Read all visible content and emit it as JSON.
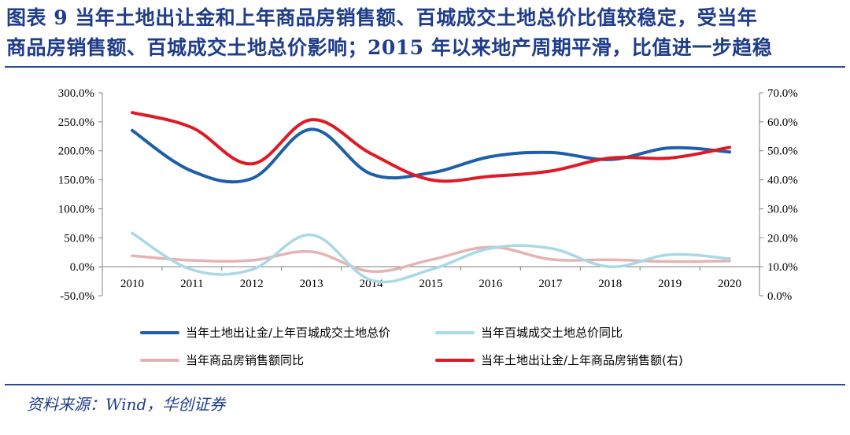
{
  "title_line1": "图表 9  当年土地出让金和上年商品房销售额、百城成交土地总价比值较稳定，受当年",
  "title_line2": "商品房销售额、百城成交土地总价影响；2015 年以来地产周期平滑，比值进一步趋稳",
  "source": "资料来源：Wind，华创证券",
  "chart_data": {
    "type": "line",
    "categories": [
      "2010",
      "2011",
      "2012",
      "2013",
      "2014",
      "2015",
      "2016",
      "2017",
      "2018",
      "2019",
      "2020"
    ],
    "left_axis": {
      "ylim": [
        -50,
        300
      ],
      "ticks": [
        "300.0%",
        "250.0%",
        "200.0%",
        "150.0%",
        "100.0%",
        "50.0%",
        "0.0%",
        "-50.0%"
      ]
    },
    "right_axis": {
      "ylim": [
        0,
        70
      ],
      "ticks": [
        "70.0%",
        "60.0%",
        "50.0%",
        "40.0%",
        "30.0%",
        "20.0%",
        "10.0%",
        "0.0%"
      ]
    },
    "series": [
      {
        "name": "当年土地出让金/上年百城成交土地总价",
        "axis": "left",
        "color": "#1f5fa8",
        "values": [
          235,
          165,
          152,
          237,
          160,
          162,
          190,
          197,
          185,
          205,
          198
        ]
      },
      {
        "name": "当年百城成交土地总价同比",
        "axis": "left",
        "color": "#a9d8e6",
        "values": [
          58,
          -5,
          -5,
          55,
          -23,
          -5,
          32,
          32,
          0,
          21,
          14
        ]
      },
      {
        "name": "当年商品房销售额同比",
        "axis": "left",
        "color": "#e6b3b3",
        "values": [
          19,
          11,
          11,
          26,
          -8,
          12,
          34,
          13,
          12,
          9,
          10
        ]
      },
      {
        "name": "当年土地出让金/上年商品房销售额(右)",
        "axis": "right",
        "color": "#e01a25",
        "values": [
          63.2,
          58,
          45.5,
          60.7,
          49,
          40,
          41.2,
          43,
          47.5,
          47.5,
          51.2
        ]
      }
    ],
    "legend_position": "bottom",
    "grid": false
  },
  "colors": {
    "title": "#1f3d8a",
    "rule": "#2e4a94"
  }
}
